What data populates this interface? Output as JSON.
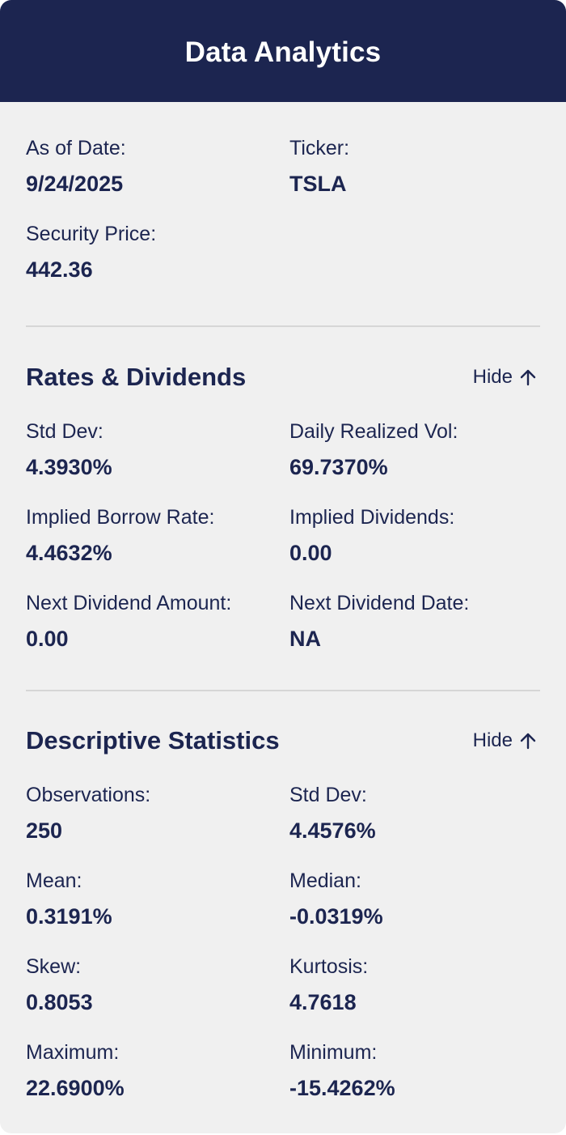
{
  "header": {
    "title": "Data Analytics"
  },
  "summary": {
    "as_of_date": {
      "label": "As of Date:",
      "value": "9/24/2025"
    },
    "ticker": {
      "label": "Ticker:",
      "value": "TSLA"
    },
    "security_price": {
      "label": "Security Price:",
      "value": "442.36"
    }
  },
  "rates": {
    "title": "Rates & Dividends",
    "toggle_label": "Hide",
    "toggle_icon": "arrow-up-icon",
    "fields": [
      {
        "label": "Std Dev:",
        "value": "4.3930%"
      },
      {
        "label": "Daily Realized Vol:",
        "value": "69.7370%"
      },
      {
        "label": "Implied Borrow Rate:",
        "value": "4.4632%"
      },
      {
        "label": "Implied Dividends:",
        "value": "0.00"
      },
      {
        "label": "Next Dividend Amount:",
        "value": "0.00"
      },
      {
        "label": "Next Dividend Date:",
        "value": "NA"
      }
    ]
  },
  "stats": {
    "title": "Descriptive Statistics",
    "toggle_label": "Hide",
    "toggle_icon": "arrow-up-icon",
    "fields": [
      {
        "label": "Observations:",
        "value": "250"
      },
      {
        "label": "Std Dev:",
        "value": "4.4576%"
      },
      {
        "label": "Mean:",
        "value": "0.3191%"
      },
      {
        "label": "Median:",
        "value": "-0.0319%"
      },
      {
        "label": "Skew:",
        "value": "0.8053"
      },
      {
        "label": "Kurtosis:",
        "value": "4.7618"
      },
      {
        "label": "Maximum:",
        "value": "22.6900%"
      },
      {
        "label": "Minimum:",
        "value": "-15.4262%"
      }
    ]
  },
  "colors": {
    "header_bg": "#1c2550",
    "panel_bg": "#f0f0f0",
    "text": "#1c2550",
    "divider": "#d6d6d6"
  }
}
